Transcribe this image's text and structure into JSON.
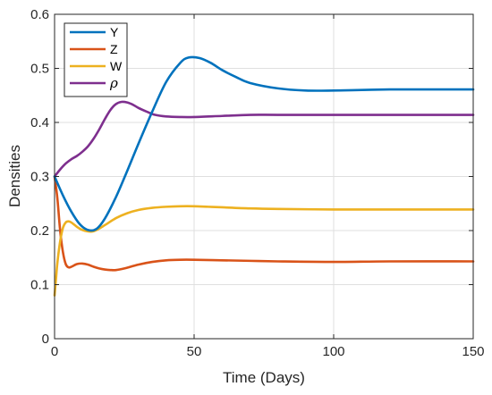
{
  "chart_data": {
    "type": "line",
    "xlabel": "Time (Days)",
    "ylabel": "Densities",
    "xlim": [
      0,
      150
    ],
    "ylim": [
      0,
      0.6
    ],
    "xticks": [
      0,
      50,
      100,
      150
    ],
    "xtick_labels": [
      "0",
      "50",
      "100",
      "150"
    ],
    "yticks": [
      0,
      0.1,
      0.2,
      0.3,
      0.4,
      0.5,
      0.6
    ],
    "ytick_labels": [
      "0",
      "0.1",
      "0.2",
      "0.3",
      "0.4",
      "0.5",
      "0.6"
    ],
    "grid": true,
    "legend_position": "top-left",
    "series": [
      {
        "name": "Y",
        "color": "#0072BD",
        "x": [
          0,
          3,
          6,
          9,
          12,
          15,
          18,
          22,
          26,
          30,
          35,
          40,
          45,
          48,
          52,
          56,
          60,
          65,
          70,
          80,
          90,
          100,
          110,
          120,
          130,
          140,
          150
        ],
        "y": [
          0.3,
          0.265,
          0.235,
          0.212,
          0.201,
          0.203,
          0.222,
          0.262,
          0.31,
          0.36,
          0.42,
          0.475,
          0.51,
          0.52,
          0.519,
          0.51,
          0.497,
          0.484,
          0.473,
          0.463,
          0.459,
          0.459,
          0.46,
          0.461,
          0.461,
          0.461,
          0.461
        ]
      },
      {
        "name": "Z",
        "color": "#D95319",
        "x": [
          0,
          1,
          2,
          3,
          4,
          5,
          6,
          8,
          10,
          12,
          14,
          16,
          18,
          20,
          22,
          25,
          30,
          35,
          40,
          45,
          50,
          60,
          70,
          80,
          100,
          120,
          150
        ],
        "y": [
          0.3,
          0.26,
          0.2,
          0.16,
          0.138,
          0.132,
          0.133,
          0.138,
          0.139,
          0.137,
          0.133,
          0.13,
          0.128,
          0.127,
          0.127,
          0.13,
          0.137,
          0.142,
          0.145,
          0.146,
          0.146,
          0.145,
          0.144,
          0.143,
          0.142,
          0.143,
          0.143
        ]
      },
      {
        "name": "W",
        "color": "#EDB120",
        "x": [
          0,
          0.5,
          1,
          2,
          3,
          4,
          5,
          6,
          8,
          10,
          13,
          15,
          18,
          22,
          26,
          30,
          35,
          40,
          45,
          50,
          55,
          60,
          70,
          80,
          100,
          120,
          150
        ],
        "y": [
          0.08,
          0.11,
          0.14,
          0.18,
          0.205,
          0.215,
          0.217,
          0.215,
          0.207,
          0.201,
          0.198,
          0.201,
          0.21,
          0.223,
          0.232,
          0.238,
          0.242,
          0.244,
          0.245,
          0.245,
          0.244,
          0.243,
          0.241,
          0.24,
          0.239,
          0.239,
          0.239
        ]
      },
      {
        "name": "ρ",
        "color": "#7E2F8E",
        "x": [
          0,
          2,
          4,
          6,
          8,
          10,
          12,
          14,
          16,
          18,
          20,
          22,
          24,
          26,
          28,
          30,
          33,
          36,
          40,
          45,
          50,
          60,
          70,
          80,
          100,
          120,
          150
        ],
        "y": [
          0.3,
          0.313,
          0.324,
          0.332,
          0.338,
          0.346,
          0.356,
          0.37,
          0.387,
          0.406,
          0.423,
          0.434,
          0.438,
          0.437,
          0.433,
          0.427,
          0.42,
          0.414,
          0.411,
          0.41,
          0.41,
          0.412,
          0.414,
          0.414,
          0.414,
          0.414,
          0.414
        ]
      }
    ]
  }
}
